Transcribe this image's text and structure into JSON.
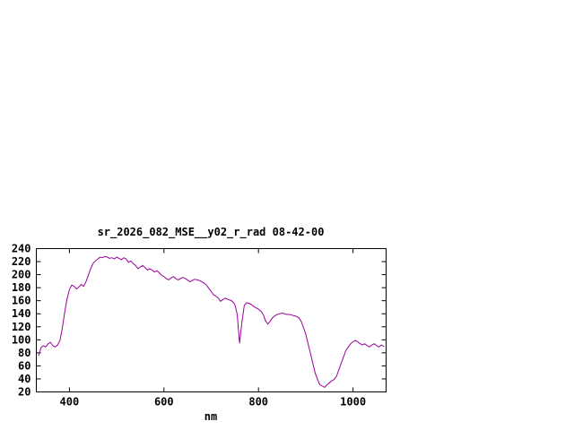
{
  "chart_data": {
    "type": "line",
    "title": "sr_2026_082_MSE__y02_r_rad 08-42-00",
    "xlabel": "nm",
    "ylabel": "",
    "xlim": [
      330,
      1070
    ],
    "ylim": [
      20,
      240
    ],
    "x_ticks": [
      400,
      600,
      800,
      1000
    ],
    "y_ticks": [
      20,
      40,
      60,
      80,
      100,
      120,
      140,
      160,
      180,
      200,
      220,
      240
    ],
    "grid": false,
    "legend_position": "none",
    "line_color": "#990099",
    "background_color": "#ffffff",
    "series": [
      {
        "name": "sr_2026_082_MSE__y02_r_rad",
        "x": [
          335,
          340,
          345,
          350,
          355,
          360,
          365,
          370,
          375,
          380,
          385,
          390,
          395,
          400,
          405,
          410,
          415,
          420,
          425,
          430,
          435,
          440,
          445,
          450,
          455,
          460,
          465,
          470,
          475,
          480,
          485,
          490,
          495,
          500,
          505,
          510,
          515,
          520,
          525,
          530,
          535,
          540,
          545,
          550,
          555,
          560,
          565,
          570,
          575,
          580,
          585,
          590,
          595,
          600,
          605,
          610,
          615,
          620,
          625,
          630,
          635,
          640,
          645,
          650,
          655,
          660,
          665,
          670,
          675,
          680,
          685,
          690,
          695,
          700,
          705,
          710,
          715,
          720,
          725,
          730,
          735,
          740,
          745,
          750,
          755,
          760,
          765,
          770,
          775,
          780,
          785,
          790,
          795,
          800,
          805,
          810,
          815,
          820,
          825,
          830,
          835,
          840,
          845,
          850,
          855,
          860,
          865,
          870,
          875,
          880,
          885,
          890,
          895,
          900,
          905,
          910,
          915,
          920,
          925,
          930,
          935,
          940,
          945,
          950,
          955,
          960,
          965,
          970,
          975,
          980,
          985,
          990,
          995,
          1000,
          1005,
          1010,
          1015,
          1020,
          1025,
          1030,
          1035,
          1040,
          1045,
          1050,
          1055,
          1060,
          1065
        ],
        "y": [
          76,
          88,
          91,
          89,
          94,
          96,
          91,
          89,
          92,
          99,
          118,
          142,
          163,
          177,
          184,
          182,
          178,
          181,
          185,
          182,
          189,
          199,
          209,
          217,
          221,
          224,
          227,
          226,
          228,
          227,
          225,
          226,
          224,
          227,
          225,
          223,
          226,
          224,
          219,
          221,
          217,
          214,
          209,
          212,
          214,
          211,
          207,
          209,
          207,
          204,
          206,
          203,
          199,
          197,
          194,
          192,
          195,
          197,
          194,
          192,
          194,
          196,
          194,
          192,
          189,
          191,
          193,
          192,
          191,
          189,
          187,
          184,
          179,
          174,
          169,
          167,
          164,
          159,
          162,
          164,
          162,
          161,
          159,
          154,
          139,
          95,
          128,
          153,
          157,
          156,
          154,
          151,
          149,
          147,
          144,
          139,
          129,
          124,
          129,
          134,
          137,
          139,
          140,
          141,
          140,
          139,
          139,
          138,
          137,
          136,
          134,
          129,
          119,
          109,
          94,
          79,
          64,
          49,
          39,
          31,
          29,
          27,
          31,
          34,
          37,
          39,
          44,
          54,
          64,
          74,
          84,
          89,
          94,
          97,
          99,
          97,
          94,
          92,
          94,
          91,
          89,
          92,
          94,
          91,
          89,
          92,
          90
        ]
      }
    ]
  }
}
